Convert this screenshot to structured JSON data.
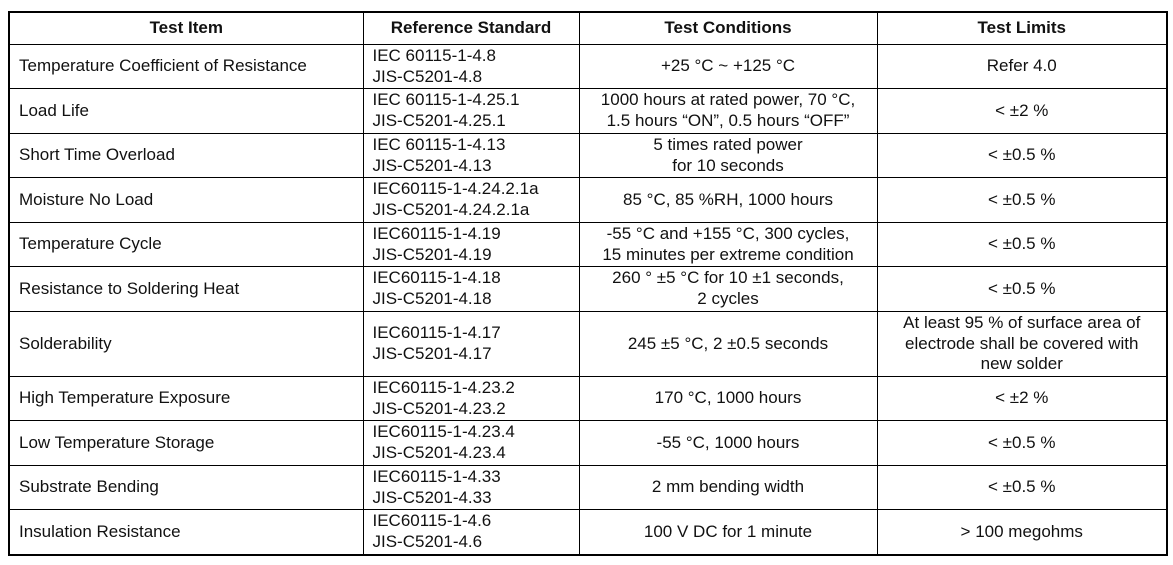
{
  "table": {
    "headers": [
      "Test Item",
      "Reference Standard",
      "Test Conditions",
      "Test Limits"
    ],
    "border_color": "#000000",
    "text_color": "#111111",
    "background_color": "#ffffff",
    "rows": [
      {
        "item": "Temperature Coefficient of Resistance",
        "standards": [
          "IEC 60115-1-4.8",
          "JIS-C5201-4.8"
        ],
        "conditions": [
          "+25 °C ~ +125 °C"
        ],
        "limits": [
          "Refer 4.0"
        ]
      },
      {
        "item": "Load Life",
        "standards": [
          "IEC 60115-1-4.25.1",
          "JIS-C5201-4.25.1"
        ],
        "conditions": [
          "1000 hours at rated power, 70 °C,",
          "1.5 hours “ON”, 0.5 hours “OFF”"
        ],
        "limits": [
          "< ±2 %"
        ]
      },
      {
        "item": "Short Time Overload",
        "standards": [
          "IEC 60115-1-4.13",
          "JIS-C5201-4.13"
        ],
        "conditions": [
          "5 times rated power",
          "for 10 seconds"
        ],
        "limits": [
          "< ±0.5 %"
        ]
      },
      {
        "item": "Moisture No Load",
        "standards": [
          "IEC60115-1-4.24.2.1a",
          "JIS-C5201-4.24.2.1a"
        ],
        "conditions": [
          "85 °C, 85 %RH, 1000 hours"
        ],
        "limits": [
          "< ±0.5 %"
        ]
      },
      {
        "item": "Temperature Cycle",
        "standards": [
          "IEC60115-1-4.19",
          "JIS-C5201-4.19"
        ],
        "conditions": [
          "-55 °C and +155 °C, 300 cycles,",
          "15 minutes per extreme condition"
        ],
        "limits": [
          "< ±0.5 %"
        ]
      },
      {
        "item": "Resistance to Soldering Heat",
        "standards": [
          "IEC60115-1-4.18",
          "JIS-C5201-4.18"
        ],
        "conditions": [
          "260 ° ±5 °C for 10 ±1 seconds,",
          "2 cycles"
        ],
        "limits": [
          "< ±0.5 %"
        ]
      },
      {
        "item": "Solderability",
        "standards": [
          "IEC60115-1-4.17",
          "JIS-C5201-4.17"
        ],
        "conditions": [
          "245 ±5 °C, 2 ±0.5 seconds"
        ],
        "limits": [
          "At least 95 % of surface area of",
          "electrode shall be covered with",
          "new solder"
        ]
      },
      {
        "item": "High Temperature Exposure",
        "standards": [
          "IEC60115-1-4.23.2",
          "JIS-C5201-4.23.2"
        ],
        "conditions": [
          "170 °C, 1000 hours"
        ],
        "limits": [
          "< ±2 %"
        ]
      },
      {
        "item": "Low Temperature Storage",
        "standards": [
          "IEC60115-1-4.23.4",
          "JIS-C5201-4.23.4"
        ],
        "conditions": [
          "-55 °C, 1000 hours"
        ],
        "limits": [
          "< ±0.5 %"
        ]
      },
      {
        "item": "Substrate Bending",
        "standards": [
          "IEC60115-1-4.33",
          "JIS-C5201-4.33"
        ],
        "conditions": [
          "2 mm bending width"
        ],
        "limits": [
          "< ±0.5 %"
        ]
      },
      {
        "item": "Insulation Resistance",
        "standards": [
          "IEC60115-1-4.6",
          "JIS-C5201-4.6"
        ],
        "conditions": [
          "100 V DC for 1 minute"
        ],
        "limits": [
          "> 100 megohms"
        ]
      }
    ]
  }
}
